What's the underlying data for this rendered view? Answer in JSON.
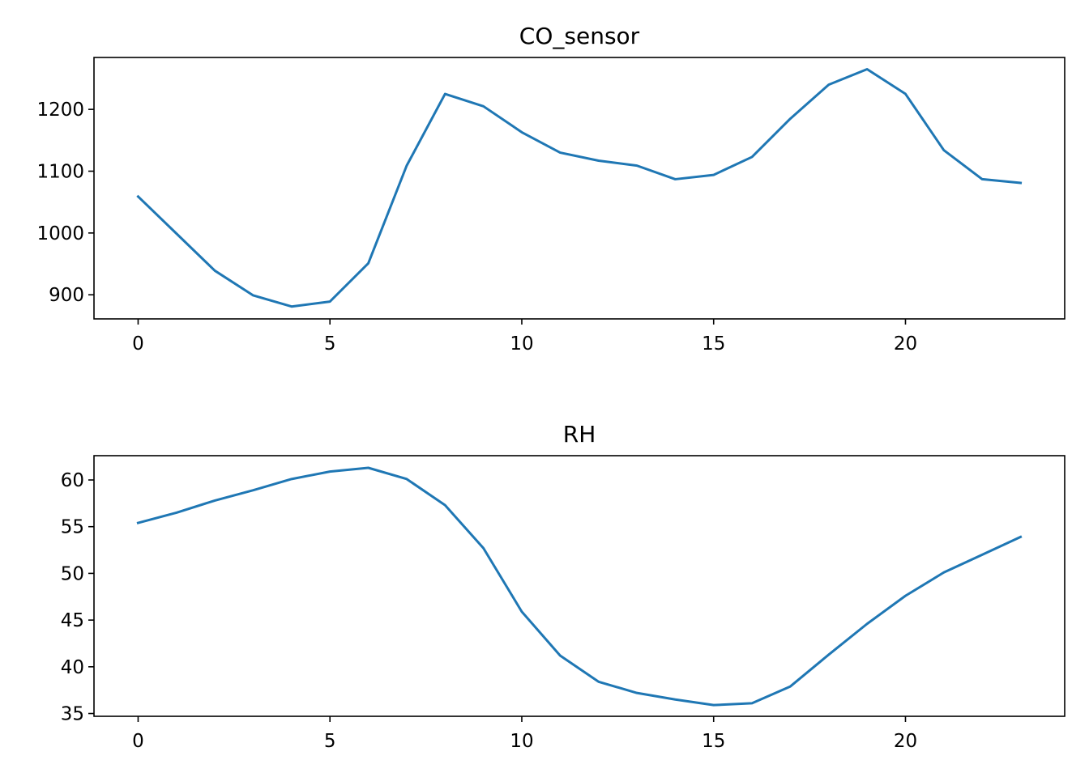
{
  "chart_data": [
    {
      "type": "line",
      "title": "CO_sensor",
      "xlabel": "",
      "ylabel": "",
      "xlim": [
        -1.15,
        24.15
      ],
      "ylim": [
        861,
        1284
      ],
      "xticks": [
        0,
        5,
        10,
        15,
        20
      ],
      "yticks": [
        900,
        1000,
        1100,
        1200
      ],
      "grid": false,
      "color": "#1f77b4",
      "x": [
        0,
        1,
        2,
        3,
        4,
        5,
        6,
        7,
        8,
        9,
        10,
        11,
        12,
        13,
        14,
        15,
        16,
        17,
        18,
        19,
        20,
        21,
        22,
        23
      ],
      "values": [
        1059,
        999,
        939,
        899,
        881,
        889,
        951,
        1109,
        1225,
        1205,
        1163,
        1130,
        1117,
        1109,
        1087,
        1094,
        1123,
        1185,
        1240,
        1265,
        1225,
        1134,
        1087,
        1081
      ]
    },
    {
      "type": "line",
      "title": "RH",
      "xlabel": "",
      "ylabel": "",
      "xlim": [
        -1.15,
        24.15
      ],
      "ylim": [
        34.7,
        62.6
      ],
      "xticks": [
        0,
        5,
        10,
        15,
        20
      ],
      "yticks": [
        35,
        40,
        45,
        50,
        55,
        60
      ],
      "grid": false,
      "color": "#1f77b4",
      "x": [
        0,
        1,
        2,
        3,
        4,
        5,
        6,
        7,
        8,
        9,
        10,
        11,
        12,
        13,
        14,
        15,
        16,
        17,
        18,
        19,
        20,
        21,
        22,
        23
      ],
      "values": [
        55.4,
        56.5,
        57.8,
        58.9,
        60.1,
        60.9,
        61.3,
        60.1,
        57.3,
        52.7,
        45.9,
        41.2,
        38.4,
        37.2,
        36.5,
        35.9,
        36.1,
        37.9,
        41.3,
        44.6,
        47.6,
        50.1,
        52.0,
        53.9
      ]
    }
  ]
}
